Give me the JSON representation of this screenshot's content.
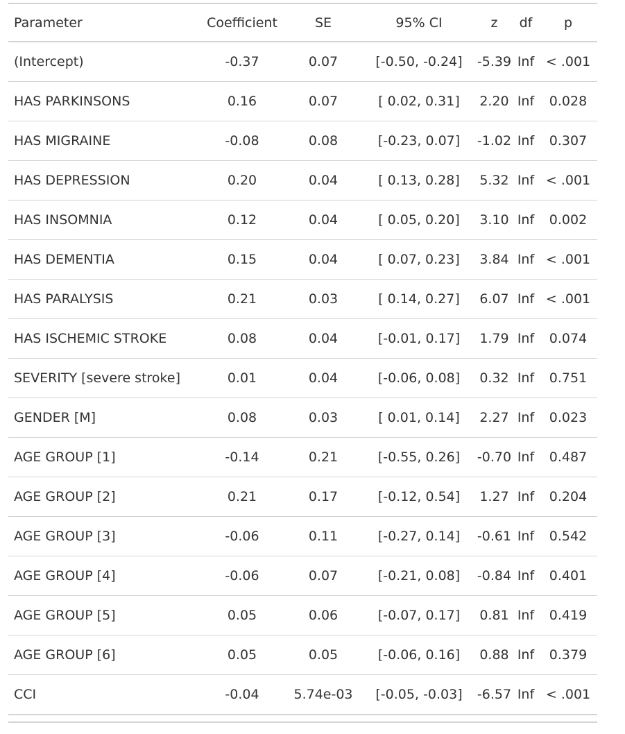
{
  "table": {
    "headers": {
      "parameter": "Parameter",
      "coefficient": "Coefficient",
      "se": "SE",
      "ci": "95% CI",
      "z": "z",
      "df": "df",
      "p": "p"
    },
    "rows": [
      {
        "parameter": "(Intercept)",
        "coefficient": "-0.37",
        "se": "0.07",
        "ci": "[-0.50, -0.24]",
        "z": "-5.39",
        "df": "Inf",
        "p": "< .001"
      },
      {
        "parameter": "HAS PARKINSONS",
        "coefficient": "0.16",
        "se": "0.07",
        "ci": "[ 0.02, 0.31]",
        "z": "2.20",
        "df": "Inf",
        "p": "0.028"
      },
      {
        "parameter": "HAS MIGRAINE",
        "coefficient": "-0.08",
        "se": "0.08",
        "ci": "[-0.23, 0.07]",
        "z": "-1.02",
        "df": "Inf",
        "p": "0.307"
      },
      {
        "parameter": "HAS DEPRESSION",
        "coefficient": "0.20",
        "se": "0.04",
        "ci": "[ 0.13, 0.28]",
        "z": "5.32",
        "df": "Inf",
        "p": "< .001"
      },
      {
        "parameter": "HAS INSOMNIA",
        "coefficient": "0.12",
        "se": "0.04",
        "ci": "[ 0.05, 0.20]",
        "z": "3.10",
        "df": "Inf",
        "p": "0.002"
      },
      {
        "parameter": "HAS DEMENTIA",
        "coefficient": "0.15",
        "se": "0.04",
        "ci": "[ 0.07, 0.23]",
        "z": "3.84",
        "df": "Inf",
        "p": "< .001"
      },
      {
        "parameter": "HAS PARALYSIS",
        "coefficient": "0.21",
        "se": "0.03",
        "ci": "[ 0.14, 0.27]",
        "z": "6.07",
        "df": "Inf",
        "p": "< .001"
      },
      {
        "parameter": "HAS ISCHEMIC STROKE",
        "coefficient": "0.08",
        "se": "0.04",
        "ci": "[-0.01, 0.17]",
        "z": "1.79",
        "df": "Inf",
        "p": "0.074"
      },
      {
        "parameter": "SEVERITY [severe stroke]",
        "coefficient": "0.01",
        "se": "0.04",
        "ci": "[-0.06, 0.08]",
        "z": "0.32",
        "df": "Inf",
        "p": "0.751"
      },
      {
        "parameter": "GENDER [M]",
        "coefficient": "0.08",
        "se": "0.03",
        "ci": "[ 0.01, 0.14]",
        "z": "2.27",
        "df": "Inf",
        "p": "0.023"
      },
      {
        "parameter": "AGE GROUP [1]",
        "coefficient": "-0.14",
        "se": "0.21",
        "ci": "[-0.55, 0.26]",
        "z": "-0.70",
        "df": "Inf",
        "p": "0.487"
      },
      {
        "parameter": "AGE GROUP [2]",
        "coefficient": "0.21",
        "se": "0.17",
        "ci": "[-0.12, 0.54]",
        "z": "1.27",
        "df": "Inf",
        "p": "0.204"
      },
      {
        "parameter": "AGE GROUP [3]",
        "coefficient": "-0.06",
        "se": "0.11",
        "ci": "[-0.27, 0.14]",
        "z": "-0.61",
        "df": "Inf",
        "p": "0.542"
      },
      {
        "parameter": "AGE GROUP [4]",
        "coefficient": "-0.06",
        "se": "0.07",
        "ci": "[-0.21, 0.08]",
        "z": "-0.84",
        "df": "Inf",
        "p": "0.401"
      },
      {
        "parameter": "AGE GROUP [5]",
        "coefficient": "0.05",
        "se": "0.06",
        "ci": "[-0.07, 0.17]",
        "z": "0.81",
        "df": "Inf",
        "p": "0.419"
      },
      {
        "parameter": "AGE GROUP [6]",
        "coefficient": "0.05",
        "se": "0.05",
        "ci": "[-0.06, 0.16]",
        "z": "0.88",
        "df": "Inf",
        "p": "0.379"
      },
      {
        "parameter": "CCI",
        "coefficient": "-0.04",
        "se": "5.74e-03",
        "ci": "[-0.05, -0.03]",
        "z": "-6.57",
        "df": "Inf",
        "p": "< .001"
      }
    ]
  }
}
